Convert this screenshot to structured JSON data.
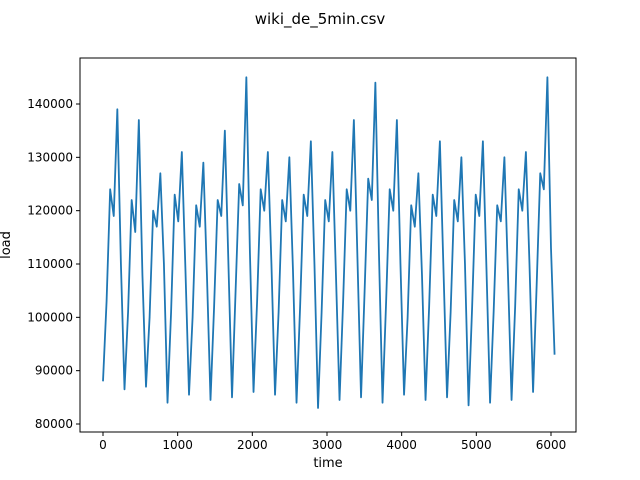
{
  "chart_data": {
    "type": "line",
    "title": "wiki_de_5min.csv",
    "x_label": "time",
    "y_label": "load",
    "x": [
      0,
      48,
      96,
      144,
      192,
      240,
      288,
      336,
      384,
      432,
      480,
      528,
      576,
      624,
      672,
      720,
      768,
      816,
      864,
      912,
      960,
      1008,
      1056,
      1104,
      1152,
      1200,
      1248,
      1296,
      1344,
      1392,
      1440,
      1488,
      1536,
      1584,
      1632,
      1680,
      1728,
      1776,
      1824,
      1872,
      1920,
      1968,
      2016,
      2064,
      2112,
      2160,
      2208,
      2256,
      2304,
      2352,
      2400,
      2448,
      2496,
      2544,
      2592,
      2640,
      2688,
      2736,
      2784,
      2832,
      2880,
      2928,
      2976,
      3024,
      3072,
      3120,
      3168,
      3216,
      3264,
      3312,
      3360,
      3408,
      3456,
      3504,
      3552,
      3600,
      3648,
      3696,
      3744,
      3792,
      3840,
      3888,
      3936,
      3984,
      4032,
      4080,
      4128,
      4176,
      4224,
      4272,
      4320,
      4368,
      4416,
      4464,
      4512,
      4560,
      4608,
      4656,
      4704,
      4752,
      4800,
      4848,
      4896,
      4944,
      4992,
      5040,
      5088,
      5136,
      5184,
      5232,
      5280,
      5328,
      5376,
      5424,
      5472,
      5520,
      5568,
      5616,
      5664,
      5712,
      5760,
      5808,
      5856,
      5904,
      5952,
      6000,
      6048
    ],
    "series": [
      {
        "name": "load",
        "color": "#1f77b4",
        "values": [
          88000,
          103000,
          124000,
          119000,
          139000,
          110000,
          86500,
          101000,
          122000,
          116000,
          137000,
          108000,
          87000,
          100000,
          120000,
          117000,
          127000,
          110000,
          84000,
          101000,
          123000,
          118000,
          131000,
          109000,
          85500,
          100000,
          121000,
          117000,
          129000,
          108000,
          84500,
          102000,
          122000,
          119000,
          135000,
          110000,
          85000,
          105000,
          125000,
          121000,
          145000,
          112000,
          86000,
          103000,
          124000,
          120000,
          131000,
          110000,
          85500,
          101000,
          122000,
          118000,
          130000,
          109000,
          84000,
          102000,
          123000,
          119000,
          133000,
          110000,
          83000,
          101000,
          122000,
          118000,
          131000,
          108000,
          84500,
          103000,
          124000,
          120000,
          137000,
          111000,
          85000,
          105000,
          126000,
          122000,
          144000,
          112000,
          84000,
          103000,
          124000,
          120000,
          137000,
          110000,
          85500,
          100000,
          121000,
          117000,
          127000,
          108000,
          84500,
          102000,
          123000,
          119000,
          133000,
          109000,
          85000,
          101000,
          122000,
          118000,
          130000,
          110000,
          83500,
          102000,
          123000,
          119000,
          133000,
          109000,
          84000,
          101000,
          121000,
          118000,
          130000,
          108000,
          84500,
          102000,
          124000,
          120000,
          131000,
          110000,
          86000,
          106000,
          127000,
          124000,
          145000,
          113000,
          93000
        ]
      }
    ],
    "xlim": [
      -308,
      6335
    ],
    "ylim": [
      78500,
      148625
    ],
    "xticks": [
      0,
      1000,
      2000,
      3000,
      4000,
      5000,
      6000
    ],
    "yticks": [
      80000,
      90000,
      100000,
      110000,
      120000,
      130000,
      140000
    ],
    "grid": false
  }
}
